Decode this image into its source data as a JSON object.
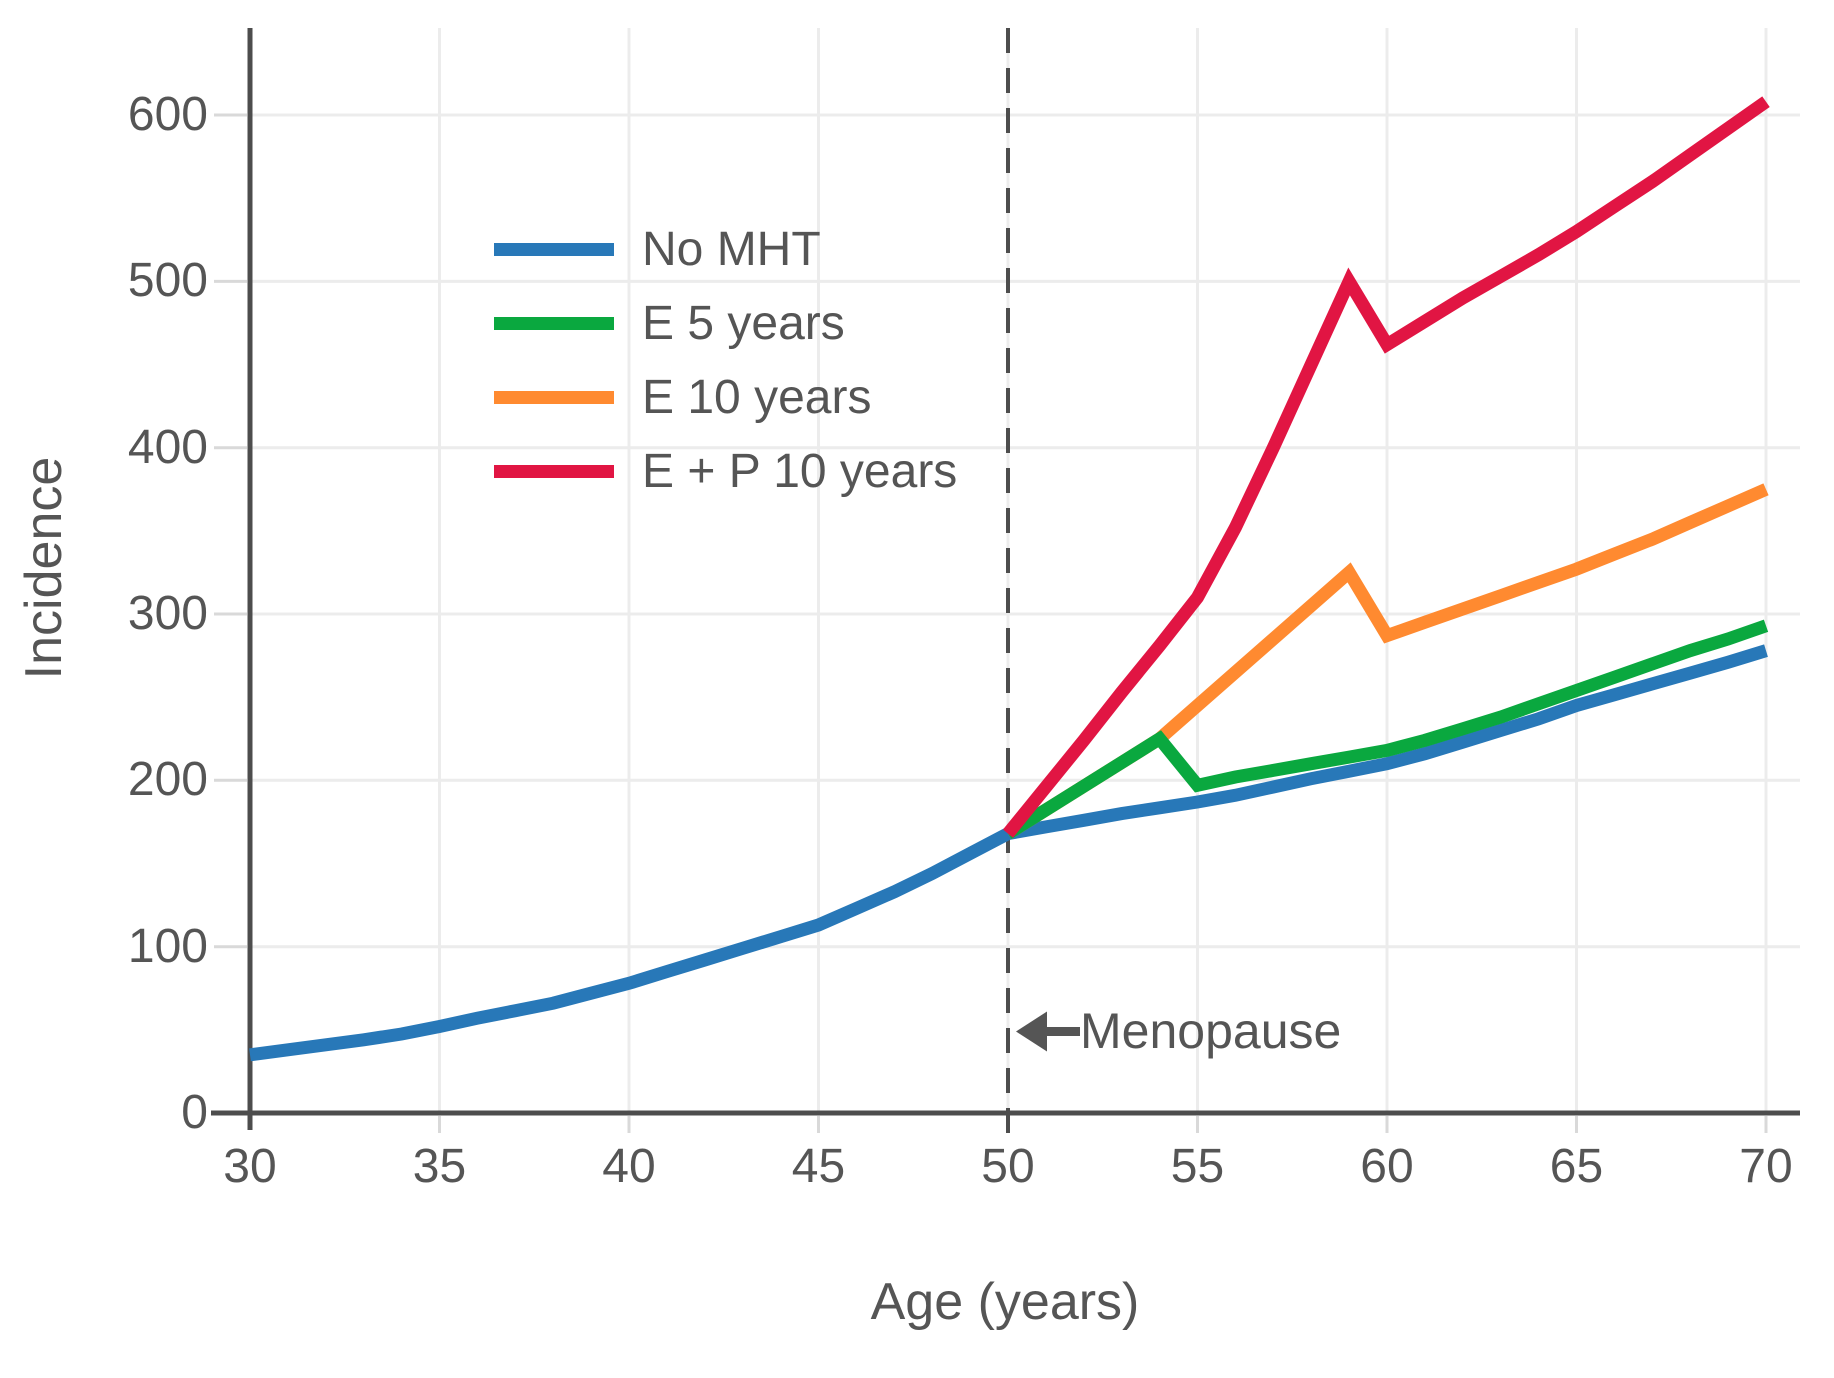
{
  "figure": {
    "background": "#ffffff",
    "axis_color": "#4d4d4d",
    "text_color": "#555555",
    "grid_color": "#ececec",
    "minor_tick_color": "#d9d9d9"
  },
  "chart_data": {
    "type": "line",
    "title": "",
    "xlabel": "Age (years)",
    "ylabel": "Incidence",
    "xlim": [
      30,
      70
    ],
    "ylim": [
      0,
      650
    ],
    "xticks": [
      30,
      35,
      40,
      45,
      50,
      55,
      60,
      65,
      70
    ],
    "yticks": [
      0,
      100,
      200,
      300,
      400,
      500,
      600
    ],
    "grid": true,
    "legend_position": "upper-left-inside",
    "vline": {
      "x": 50,
      "style": "dashed",
      "color": "#4d4d4d"
    },
    "annotation": {
      "text": "Menopause",
      "arrow": "left",
      "x": 50,
      "y": 49,
      "color": "#555555"
    },
    "series": [
      {
        "name": "No MHT",
        "color": "#2878b8",
        "points": [
          [
            30,
            35
          ],
          [
            31,
            38
          ],
          [
            32,
            41
          ],
          [
            33,
            44
          ],
          [
            34,
            47.5
          ],
          [
            35,
            52
          ],
          [
            36,
            57
          ],
          [
            37,
            61.5
          ],
          [
            38,
            66
          ],
          [
            39,
            72
          ],
          [
            40,
            78
          ],
          [
            41,
            85
          ],
          [
            42,
            92
          ],
          [
            43,
            99
          ],
          [
            44,
            106
          ],
          [
            45,
            113
          ],
          [
            46,
            123
          ],
          [
            47,
            133
          ],
          [
            48,
            144
          ],
          [
            49,
            156
          ],
          [
            50,
            168
          ],
          [
            51,
            172
          ],
          [
            52,
            176
          ],
          [
            53,
            180
          ],
          [
            54,
            183.5
          ],
          [
            55,
            187
          ],
          [
            56,
            191
          ],
          [
            57,
            196
          ],
          [
            58,
            201
          ],
          [
            59,
            205.5
          ],
          [
            60,
            210
          ],
          [
            61,
            216
          ],
          [
            62,
            223
          ],
          [
            63,
            230
          ],
          [
            64,
            237
          ],
          [
            65,
            245
          ],
          [
            66,
            251.5
          ],
          [
            67,
            258
          ],
          [
            68,
            264.5
          ],
          [
            69,
            271
          ],
          [
            70,
            278
          ]
        ]
      },
      {
        "name": "E 5 years",
        "color": "#0aa83f",
        "points": [
          [
            50,
            168
          ],
          [
            54,
            225
          ],
          [
            55,
            197
          ],
          [
            56,
            202
          ],
          [
            57,
            206
          ],
          [
            58,
            210
          ],
          [
            59,
            214
          ],
          [
            60,
            218
          ],
          [
            61,
            224
          ],
          [
            62,
            231
          ],
          [
            63,
            238
          ],
          [
            64,
            246
          ],
          [
            65,
            254
          ],
          [
            66,
            262
          ],
          [
            67,
            270
          ],
          [
            68,
            278
          ],
          [
            69,
            285
          ],
          [
            70,
            293
          ]
        ]
      },
      {
        "name": "E 10 years",
        "color": "#ff8a30",
        "points": [
          [
            50,
            168
          ],
          [
            54,
            225
          ],
          [
            59,
            325
          ],
          [
            60,
            287
          ],
          [
            61,
            295
          ],
          [
            62,
            303
          ],
          [
            63,
            311
          ],
          [
            64,
            319
          ],
          [
            65,
            327
          ],
          [
            66,
            336
          ],
          [
            67,
            345
          ],
          [
            68,
            355
          ],
          [
            69,
            365
          ],
          [
            70,
            375
          ]
        ]
      },
      {
        "name": "E + P 10 years",
        "color": "#e11543",
        "points": [
          [
            50,
            168
          ],
          [
            51,
            196
          ],
          [
            52,
            224
          ],
          [
            53,
            253
          ],
          [
            54,
            281
          ],
          [
            55,
            310
          ],
          [
            56,
            352
          ],
          [
            57,
            400
          ],
          [
            58,
            450
          ],
          [
            59,
            500
          ],
          [
            60,
            462
          ],
          [
            61,
            476
          ],
          [
            62,
            490
          ],
          [
            63,
            503
          ],
          [
            64,
            516
          ],
          [
            65,
            530
          ],
          [
            66,
            545
          ],
          [
            67,
            560
          ],
          [
            68,
            576
          ],
          [
            69,
            592
          ],
          [
            70,
            608
          ]
        ]
      }
    ]
  }
}
